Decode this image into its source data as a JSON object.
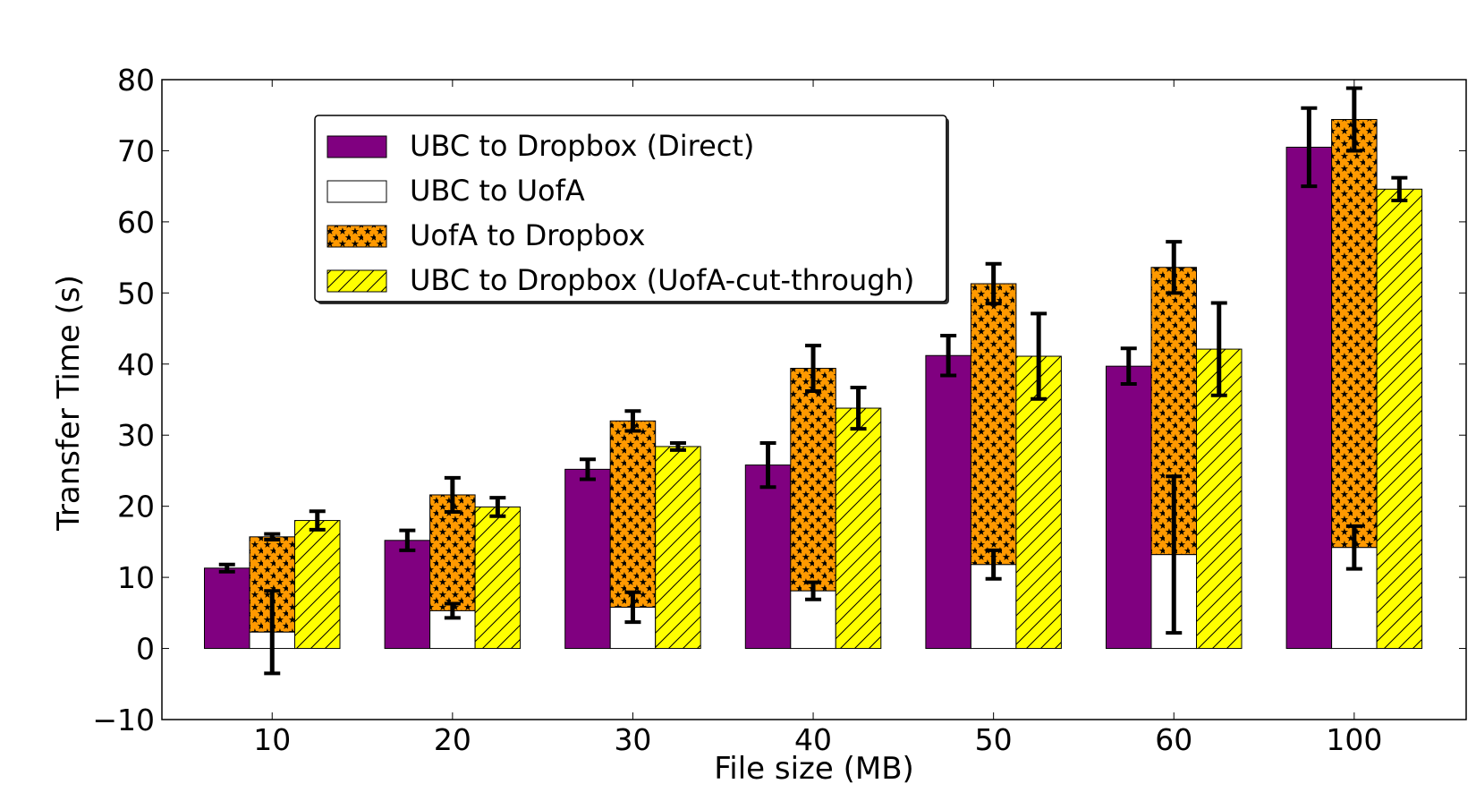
{
  "chart_data": {
    "type": "bar",
    "title": "",
    "xlabel": "File size (MB)",
    "ylabel": "Transfer Time (s)",
    "categories": [
      "10",
      "20",
      "30",
      "40",
      "50",
      "60",
      "100"
    ],
    "ylim": [
      -10,
      80
    ],
    "yticks": [
      -10,
      0,
      10,
      20,
      30,
      40,
      50,
      60,
      70,
      80
    ],
    "ytick_labels": [
      "−10",
      "0",
      "10",
      "20",
      "30",
      "40",
      "50",
      "60",
      "70",
      "80"
    ],
    "grid": false,
    "legend_position": "upper-left",
    "series": [
      {
        "name": "UBC to Dropbox (Direct)",
        "color": "#800080",
        "pattern": "solid",
        "values": [
          11.3,
          15.2,
          25.2,
          25.8,
          41.2,
          39.7,
          70.5
        ],
        "errors": [
          0.5,
          1.4,
          1.4,
          3.1,
          2.8,
          2.5,
          5.5
        ]
      },
      {
        "name": "UBC to UofA",
        "color": "#ffffff",
        "pattern": "solid",
        "stacked_under": "UofA to Dropbox",
        "values": [
          2.3,
          5.3,
          5.8,
          8.1,
          11.8,
          13.2,
          14.2
        ],
        "errors": [
          5.8,
          1.0,
          2.1,
          1.2,
          2.0,
          11.0,
          3.0
        ]
      },
      {
        "name": "UofA to Dropbox",
        "color": "#ff9900",
        "pattern": "stars",
        "stacked_on": "UBC to UofA",
        "values": [
          13.4,
          16.3,
          26.2,
          31.3,
          39.5,
          40.4,
          60.2
        ],
        "totals": [
          15.7,
          21.6,
          32.0,
          39.4,
          51.3,
          53.6,
          74.4
        ],
        "errors": [
          0.4,
          2.4,
          1.4,
          3.2,
          2.8,
          3.6,
          4.4
        ]
      },
      {
        "name": "UBC to Dropbox (UofA-cut-through)",
        "color": "#ffff00",
        "pattern": "diagonal-hatch",
        "values": [
          18.0,
          19.9,
          28.4,
          33.8,
          41.1,
          42.1,
          64.6
        ],
        "errors": [
          1.3,
          1.3,
          0.5,
          2.9,
          6.0,
          6.5,
          1.6
        ]
      }
    ]
  }
}
